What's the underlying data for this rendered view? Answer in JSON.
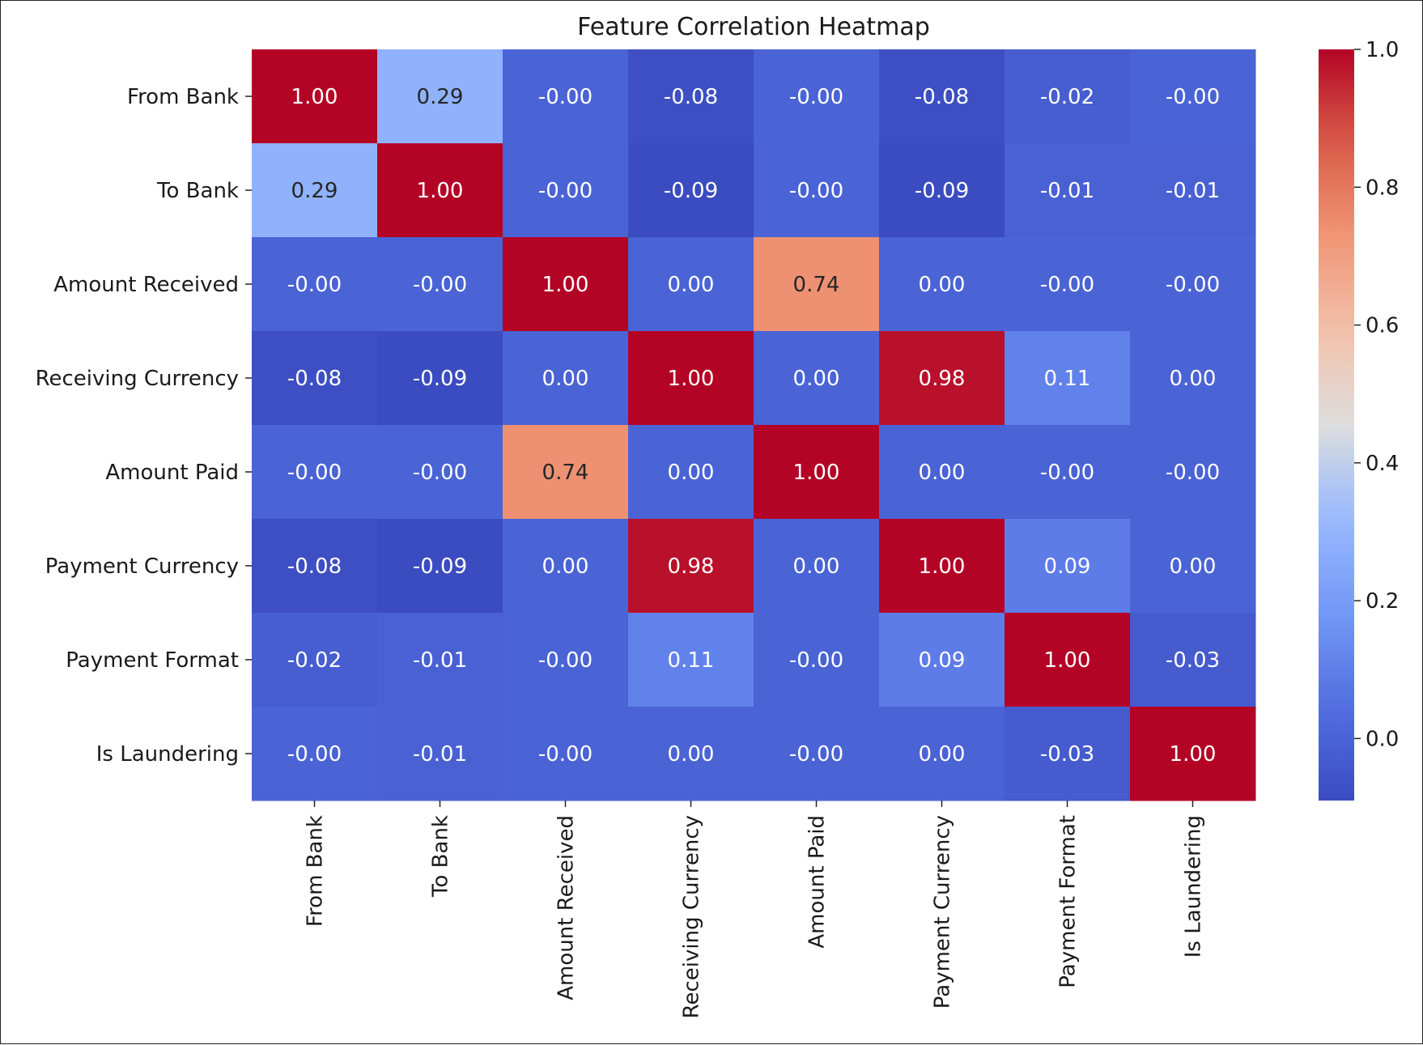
{
  "chart_data": {
    "type": "heatmap",
    "title": "Feature Correlation Heatmap",
    "rows": [
      "From Bank",
      "To Bank",
      "Amount Received",
      "Receiving Currency",
      "Amount Paid",
      "Payment Currency",
      "Payment Format",
      "Is Laundering"
    ],
    "cols": [
      "From Bank",
      "To Bank",
      "Amount Received",
      "Receiving Currency",
      "Amount Paid",
      "Payment Currency",
      "Payment Format",
      "Is Laundering"
    ],
    "values": [
      [
        1.0,
        0.29,
        -0.0,
        -0.08,
        -0.0,
        -0.08,
        -0.02,
        -0.0
      ],
      [
        0.29,
        1.0,
        -0.0,
        -0.09,
        -0.0,
        -0.09,
        -0.01,
        -0.01
      ],
      [
        -0.0,
        -0.0,
        1.0,
        0.0,
        0.74,
        0.0,
        -0.0,
        -0.0
      ],
      [
        -0.08,
        -0.09,
        0.0,
        1.0,
        0.0,
        0.98,
        0.11,
        0.0
      ],
      [
        -0.0,
        -0.0,
        0.74,
        0.0,
        1.0,
        0.0,
        -0.0,
        -0.0
      ],
      [
        -0.08,
        -0.09,
        0.0,
        0.98,
        0.0,
        1.0,
        0.09,
        0.0
      ],
      [
        -0.02,
        -0.01,
        -0.0,
        0.11,
        -0.0,
        0.09,
        1.0,
        -0.03
      ],
      [
        -0.0,
        -0.01,
        -0.0,
        0.0,
        -0.0,
        0.0,
        -0.03,
        1.0
      ]
    ],
    "labels": [
      [
        "1.00",
        "0.29",
        "-0.00",
        "-0.08",
        "-0.00",
        "-0.08",
        "-0.02",
        "-0.00"
      ],
      [
        "0.29",
        "1.00",
        "-0.00",
        "-0.09",
        "-0.00",
        "-0.09",
        "-0.01",
        "-0.01"
      ],
      [
        "-0.00",
        "-0.00",
        "1.00",
        "0.00",
        "0.74",
        "0.00",
        "-0.00",
        "-0.00"
      ],
      [
        "-0.08",
        "-0.09",
        "0.00",
        "1.00",
        "0.00",
        "0.98",
        "0.11",
        "0.00"
      ],
      [
        "-0.00",
        "-0.00",
        "0.74",
        "0.00",
        "1.00",
        "0.00",
        "-0.00",
        "-0.00"
      ],
      [
        "-0.08",
        "-0.09",
        "0.00",
        "0.98",
        "0.00",
        "1.00",
        "0.09",
        "0.00"
      ],
      [
        "-0.02",
        "-0.01",
        "-0.00",
        "0.11",
        "-0.00",
        "0.09",
        "1.00",
        "-0.03"
      ],
      [
        "-0.00",
        "-0.01",
        "-0.00",
        "0.00",
        "-0.00",
        "0.00",
        "-0.03",
        "1.00"
      ]
    ],
    "colormap": "coolwarm",
    "vmin": -0.09,
    "vmax": 1.0,
    "colorbar_ticks": [
      0.0,
      0.2,
      0.4,
      0.6,
      0.8,
      1.0
    ],
    "colorbar_tick_labels": [
      "0.0",
      "0.2",
      "0.4",
      "0.6",
      "0.8",
      "1.0"
    ],
    "grid": false,
    "legend": "colorbar-right"
  }
}
